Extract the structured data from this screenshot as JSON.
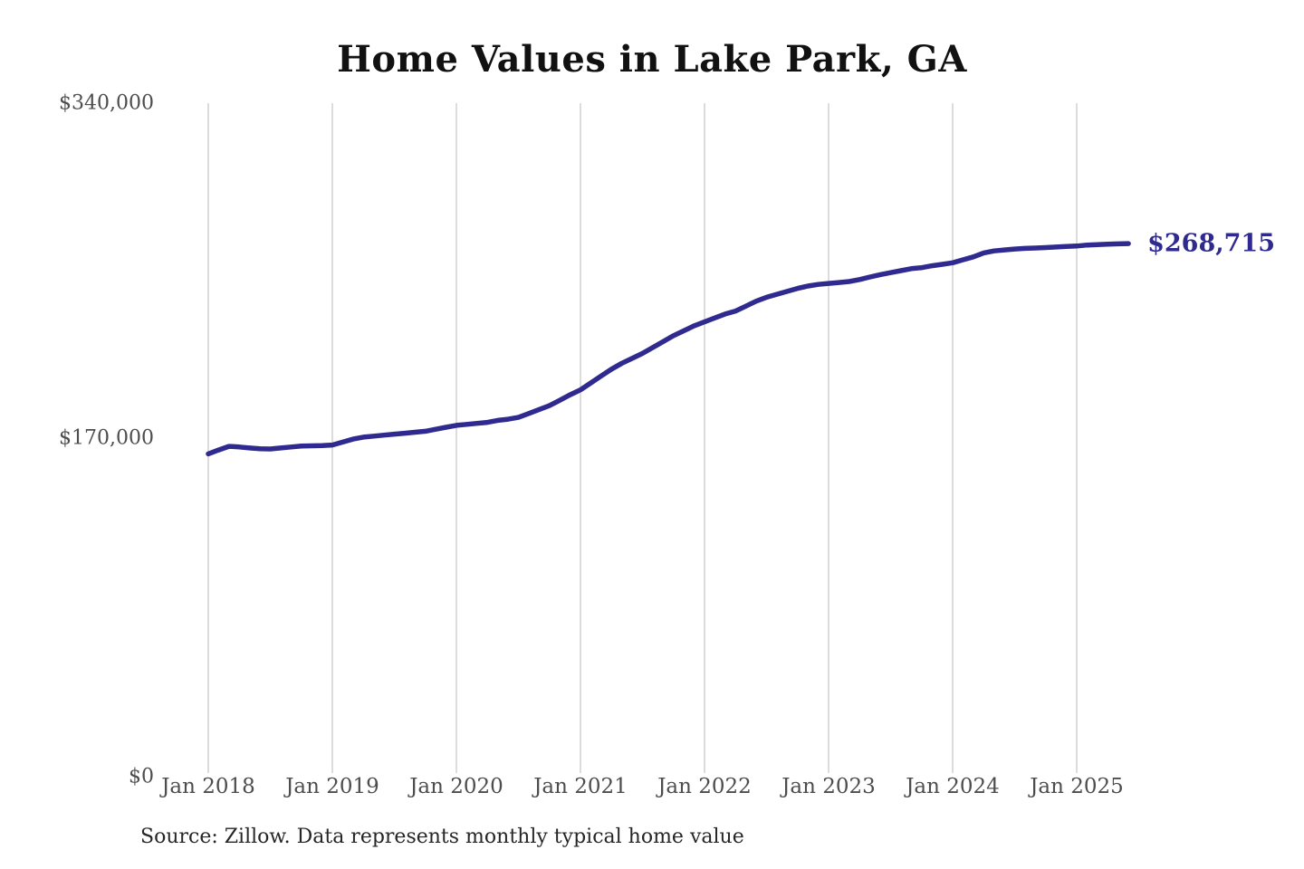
{
  "chart_data": {
    "type": "line",
    "title": "Home Values in Lake Park, GA",
    "source_note": "Source: Zillow. Data represents monthly typical home value",
    "y_domain": [
      0,
      340000
    ],
    "y_ticks": [
      {
        "value": 0,
        "label": "$0"
      },
      {
        "value": 170000,
        "label": "$170,000"
      },
      {
        "value": 340000,
        "label": "$340,000"
      }
    ],
    "x_ticks": [
      {
        "year": 2018,
        "label": "Jan 2018"
      },
      {
        "year": 2019,
        "label": "Jan 2019"
      },
      {
        "year": 2020,
        "label": "Jan 2020"
      },
      {
        "year": 2021,
        "label": "Jan 2021"
      },
      {
        "year": 2022,
        "label": "Jan 2022"
      },
      {
        "year": 2023,
        "label": "Jan 2023"
      },
      {
        "year": 2024,
        "label": "Jan 2024"
      },
      {
        "year": 2025,
        "label": "Jan 2025"
      }
    ],
    "grid": "vertical-only",
    "legend": "none",
    "colors": {
      "line": "#2f2a8f",
      "grid": "#c9c9c9",
      "title_text": "#111111",
      "axis_text": "#4d4d4d",
      "source_text": "#262626",
      "background": "#ffffff"
    },
    "series": [
      {
        "name": "Typical home value",
        "color": "#2f2a8f",
        "end_label": "$268,715",
        "end_value": 268715,
        "start_year": 2018,
        "start_month": 1,
        "interval": "month",
        "values": [
          162000,
          164000,
          165800,
          165500,
          165000,
          164600,
          164500,
          165000,
          165500,
          166000,
          166100,
          166200,
          166500,
          168000,
          169500,
          170500,
          171000,
          171500,
          172000,
          172500,
          173000,
          173500,
          174500,
          175500,
          176500,
          177000,
          177500,
          178000,
          179000,
          179600,
          180500,
          182500,
          184500,
          186500,
          189200,
          192000,
          194500,
          198000,
          201500,
          205000,
          208000,
          210500,
          213000,
          216000,
          219000,
          222000,
          224500,
          227000,
          229000,
          231000,
          233000,
          234500,
          237000,
          239500,
          241500,
          243000,
          244500,
          246000,
          247200,
          248000,
          248500,
          249000,
          249500,
          250500,
          251800,
          253000,
          254000,
          255000,
          256000,
          256500,
          257500,
          258200,
          259000,
          260500,
          262000,
          264000,
          265000,
          265500,
          266000,
          266300,
          266500,
          266700,
          267000,
          267300,
          267500,
          268000,
          268200,
          268400,
          268600,
          268715
        ]
      }
    ]
  }
}
